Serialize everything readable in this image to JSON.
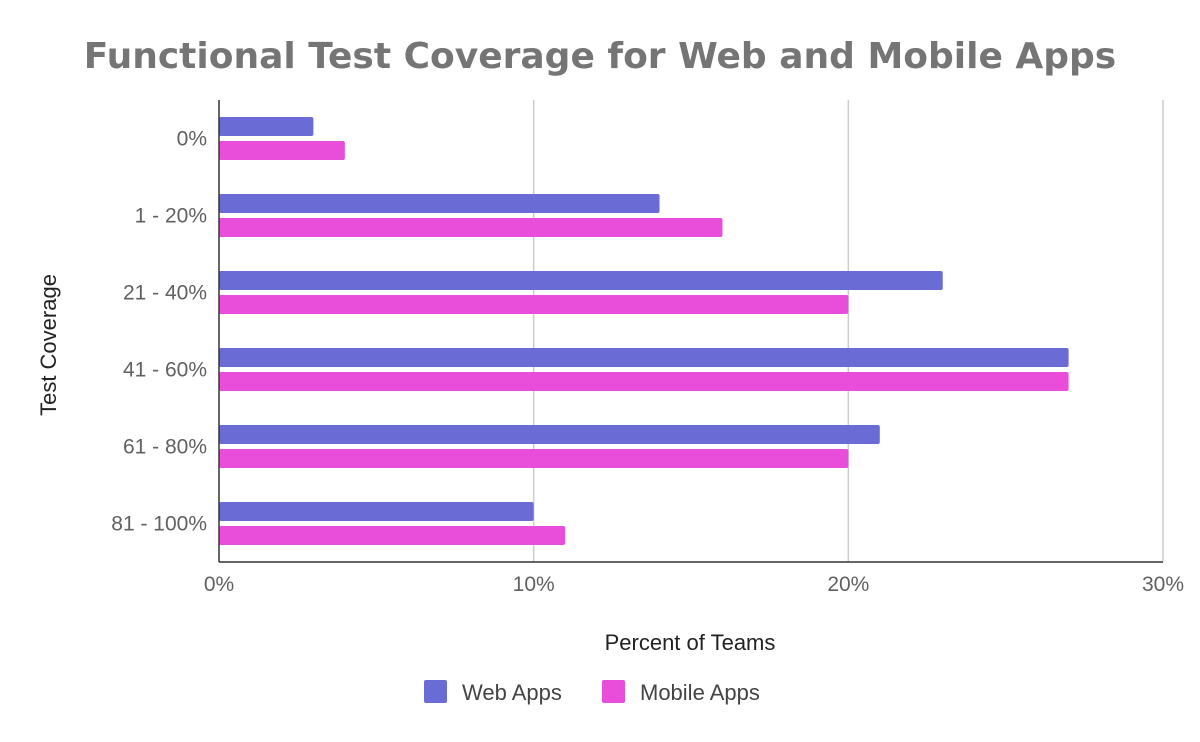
{
  "chart_data": {
    "type": "bar",
    "orientation": "horizontal",
    "title": "Functional Test Coverage for Web and Mobile Apps",
    "xlabel": "Percent of Teams",
    "ylabel": "Test Coverage",
    "categories": [
      "0%",
      "1 - 20%",
      "21 - 40%",
      "41 - 60%",
      "61 - 80%",
      "81 - 100%"
    ],
    "series": [
      {
        "name": "Web Apps",
        "color": "#6b6bd6",
        "values": [
          3,
          14,
          23,
          27,
          21,
          10
        ]
      },
      {
        "name": "Mobile Apps",
        "color": "#e84ed9",
        "values": [
          4,
          16,
          20,
          27,
          20,
          11
        ]
      }
    ],
    "xlim": [
      0,
      30
    ],
    "xticks": [
      0,
      10,
      20,
      30
    ],
    "xtick_labels": [
      "0%",
      "10%",
      "20%",
      "30%"
    ],
    "grid": true,
    "legend": "bottom"
  }
}
